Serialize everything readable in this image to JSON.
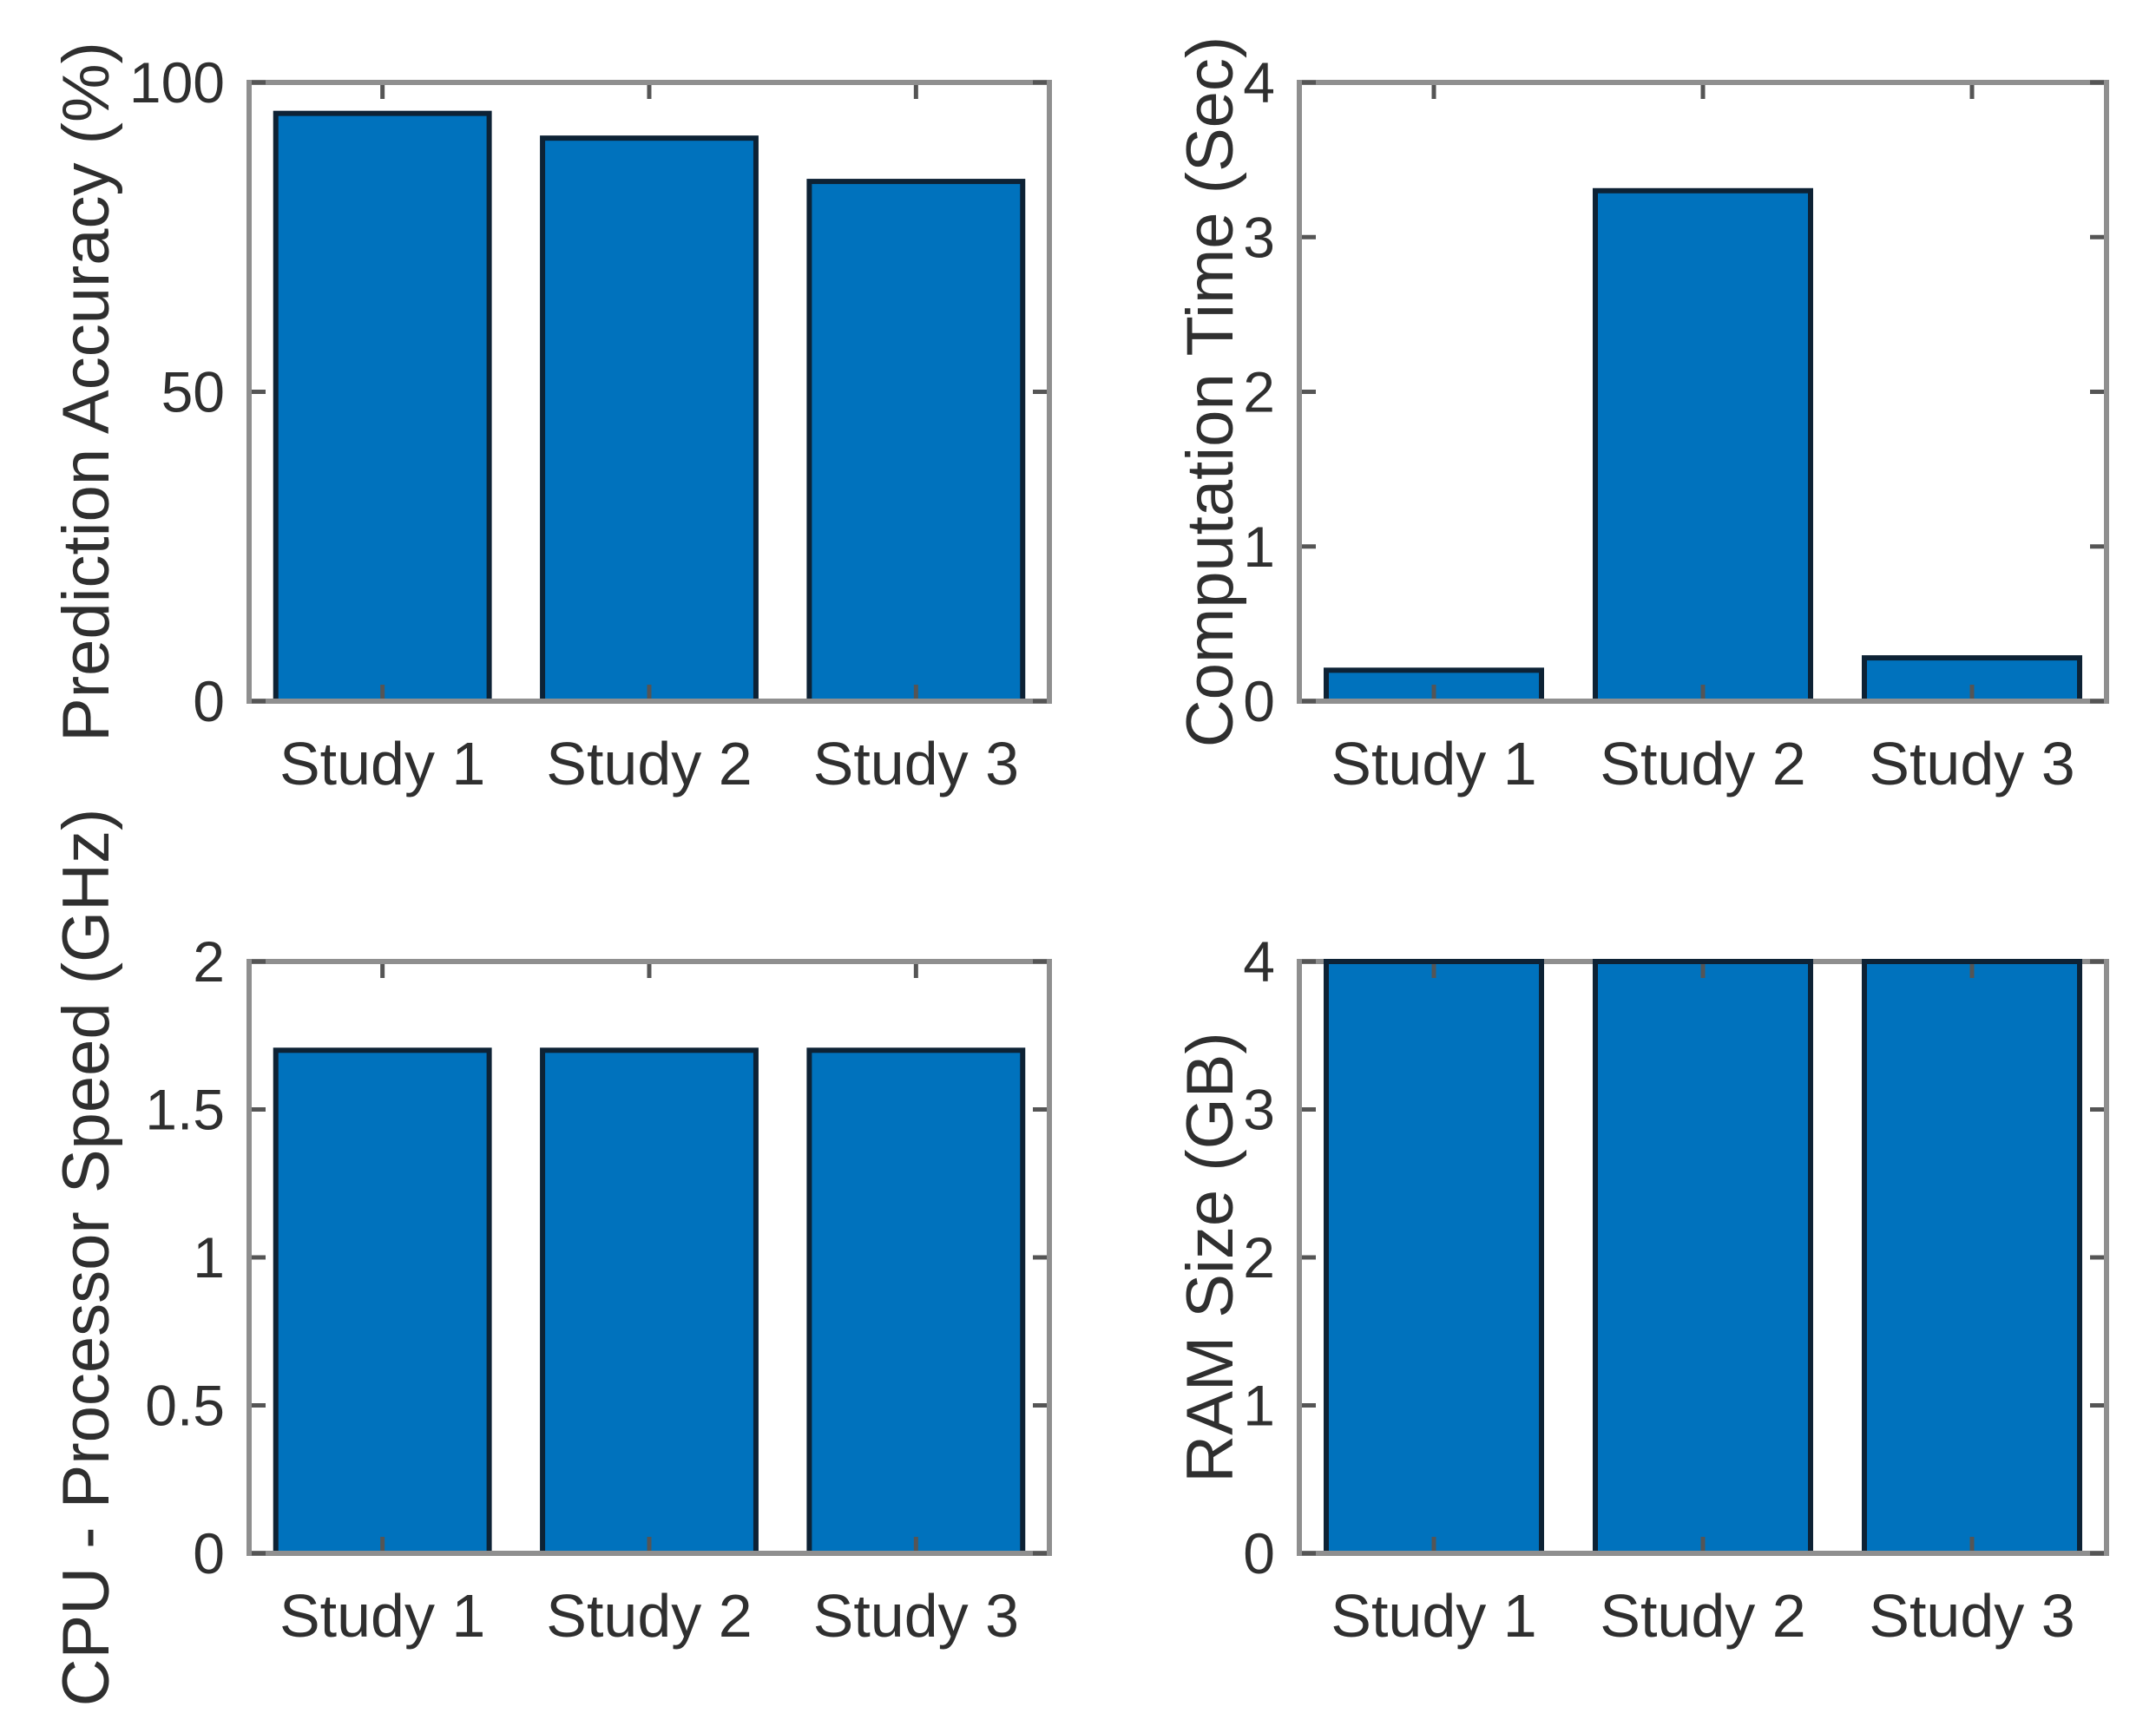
{
  "figure": {
    "title": "",
    "background": "#ffffff",
    "grid_layout": "2x2 subplots, bar charts comparing three studies"
  },
  "colors": {
    "bar_fill": "#0072BD",
    "bar_edge": "#0d2235",
    "axis_frame": "#8f8f8f",
    "tick_mark": "#555555",
    "text": "#2f2f2f",
    "background": "#ffffff"
  },
  "chart_data": [
    {
      "type": "bar",
      "position": "top-left",
      "title": "",
      "xlabel": "",
      "ylabel": "Prediction Accuracy (%)",
      "categories": [
        "Study 1",
        "Study 2",
        "Study 3"
      ],
      "values": [
        95,
        91,
        84
      ],
      "ylim": [
        0,
        100
      ],
      "yticks": [
        0,
        50,
        100
      ],
      "grid": false,
      "legend": "none"
    },
    {
      "type": "bar",
      "position": "top-right",
      "title": "",
      "xlabel": "",
      "ylabel": "Computation Time (Sec)",
      "categories": [
        "Study 1",
        "Study 2",
        "Study 3"
      ],
      "values": [
        0.2,
        3.3,
        0.28
      ],
      "ylim": [
        0,
        4
      ],
      "yticks": [
        0,
        1,
        2,
        3,
        4
      ],
      "grid": false,
      "legend": "none"
    },
    {
      "type": "bar",
      "position": "bottom-left",
      "title": "",
      "xlabel": "",
      "ylabel": "CPU - Processor Speed (GHz)",
      "categories": [
        "Study 1",
        "Study 2",
        "Study 3"
      ],
      "values": [
        1.7,
        1.7,
        1.7
      ],
      "ylim": [
        0,
        2
      ],
      "yticks": [
        0,
        0.5,
        1,
        1.5,
        2
      ],
      "grid": false,
      "legend": "none"
    },
    {
      "type": "bar",
      "position": "bottom-right",
      "title": "",
      "xlabel": "",
      "ylabel": "RAM Size (GB)",
      "categories": [
        "Study 1",
        "Study 2",
        "Study 3"
      ],
      "values": [
        4,
        4,
        4
      ],
      "ylim": [
        0,
        4
      ],
      "yticks": [
        0,
        1,
        2,
        3,
        4
      ],
      "grid": false,
      "legend": "none"
    }
  ]
}
